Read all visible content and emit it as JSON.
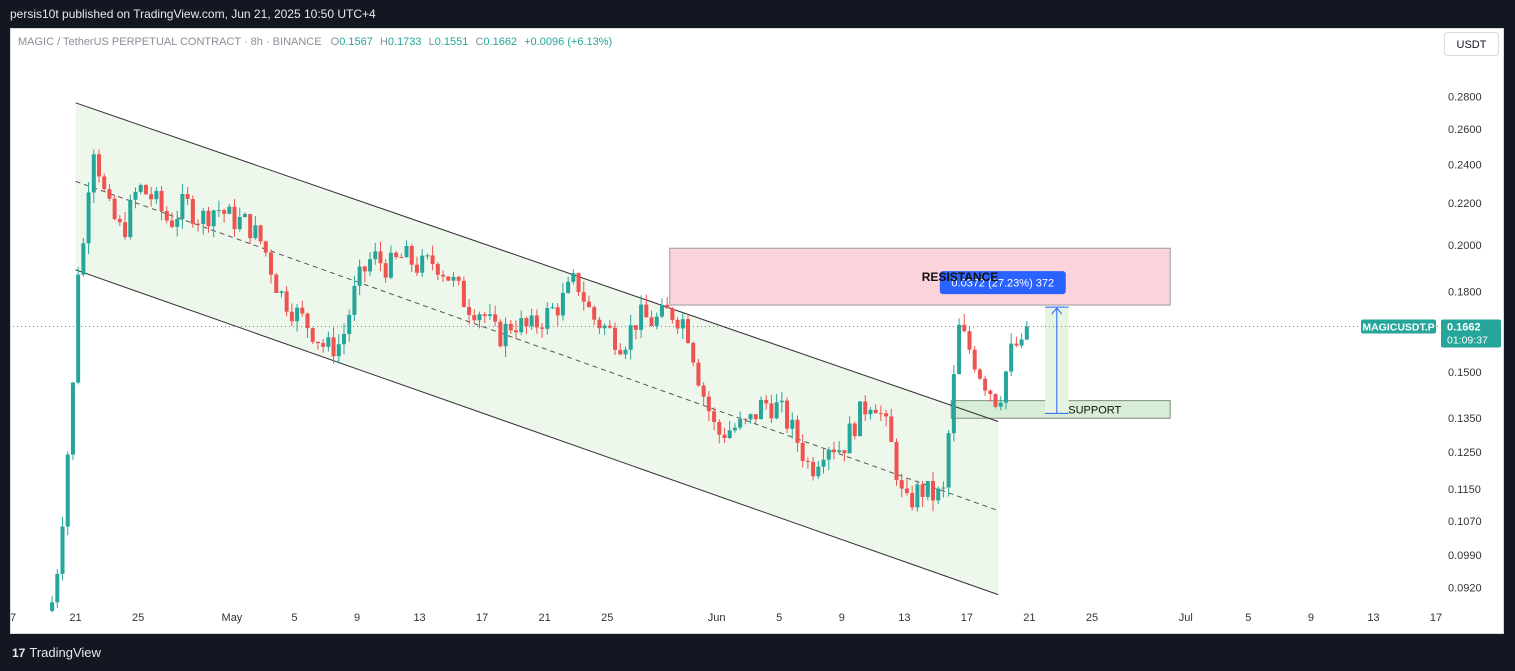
{
  "header": {
    "published": "persis10t published on TradingView.com, Jun 21, 2025 10:50 UTC+4"
  },
  "symbol_line": {
    "title": "MAGIC / TetherUS PERPETUAL CONTRACT · 8h · BINANCE",
    "open_label": "O",
    "open": "0.1567",
    "high_label": "H",
    "high": "0.1733",
    "low_label": "L",
    "low": "0.1551",
    "close_label": "C",
    "close": "0.1662",
    "change": "+0.0096 (+6.13%)"
  },
  "currency_button": "USDT",
  "footer": {
    "logo": "17",
    "brand": "TradingView"
  },
  "colors": {
    "up": "#26a69a",
    "down": "#ef5350",
    "channel_fill": "#eef7ec",
    "resistance_fill": "#fad4da",
    "support_fill": "#d8edd6",
    "measure": "#2962ff"
  },
  "chart_data": {
    "type": "candlestick",
    "symbol": "MAGICUSDT.P",
    "interval": "8h",
    "ylim": [
      0.088,
      0.298
    ],
    "y_scale": "log",
    "y_ticks": [
      "0.2800",
      "0.2600",
      "0.2400",
      "0.2200",
      "0.2000",
      "0.1800",
      "0.1500",
      "0.1350",
      "0.1250",
      "0.1150",
      "0.1070",
      "0.0990",
      "0.0920"
    ],
    "y_tick_values": [
      0.28,
      0.26,
      0.24,
      0.22,
      0.2,
      0.18,
      0.15,
      0.135,
      0.125,
      0.115,
      0.107,
      0.099,
      0.092
    ],
    "x_range": [
      "2025-04-17",
      "2025-07-17"
    ],
    "x_ticks": [
      {
        "label": "7",
        "date": "2025-04-17"
      },
      {
        "label": "21",
        "date": "2025-04-21"
      },
      {
        "label": "25",
        "date": "2025-04-25"
      },
      {
        "label": "May",
        "date": "2025-05-01"
      },
      {
        "label": "5",
        "date": "2025-05-05"
      },
      {
        "label": "9",
        "date": "2025-05-09"
      },
      {
        "label": "13",
        "date": "2025-05-13"
      },
      {
        "label": "17",
        "date": "2025-05-17"
      },
      {
        "label": "21",
        "date": "2025-05-21"
      },
      {
        "label": "25",
        "date": "2025-05-25"
      },
      {
        "label": "Jun",
        "date": "2025-06-01"
      },
      {
        "label": "5",
        "date": "2025-06-05"
      },
      {
        "label": "9",
        "date": "2025-06-09"
      },
      {
        "label": "13",
        "date": "2025-06-13"
      },
      {
        "label": "17",
        "date": "2025-06-17"
      },
      {
        "label": "21",
        "date": "2025-06-21"
      },
      {
        "label": "25",
        "date": "2025-06-25"
      },
      {
        "label": "Jul",
        "date": "2025-07-01"
      },
      {
        "label": "5",
        "date": "2025-07-05"
      },
      {
        "label": "9",
        "date": "2025-07-09"
      },
      {
        "label": "13",
        "date": "2025-07-13"
      },
      {
        "label": "17",
        "date": "2025-07-17"
      }
    ],
    "candle_path": [
      {
        "date": "2025-04-19T12:00",
        "price": 0.089
      },
      {
        "date": "2025-04-20T00:00",
        "price": 0.1
      },
      {
        "date": "2025-04-20T12:00",
        "price": 0.125
      },
      {
        "date": "2025-04-20T20:00",
        "price": 0.145
      },
      {
        "date": "2025-04-21T04:00",
        "price": 0.19
      },
      {
        "date": "2025-04-21T16:00",
        "price": 0.205
      },
      {
        "date": "2025-04-22T00:00",
        "price": 0.258
      },
      {
        "date": "2025-04-23T00:00",
        "price": 0.218
      },
      {
        "date": "2025-04-24T00:00",
        "price": 0.205
      },
      {
        "date": "2025-04-25T00:00",
        "price": 0.228
      },
      {
        "date": "2025-04-26T00:00",
        "price": 0.222
      },
      {
        "date": "2025-04-27T00:00",
        "price": 0.21
      },
      {
        "date": "2025-04-28T00:00",
        "price": 0.22
      },
      {
        "date": "2025-04-29T00:00",
        "price": 0.212
      },
      {
        "date": "2025-04-30T00:00",
        "price": 0.218
      },
      {
        "date": "2025-05-01T00:00",
        "price": 0.212
      },
      {
        "date": "2025-05-02T00:00",
        "price": 0.21
      },
      {
        "date": "2025-05-03T00:00",
        "price": 0.2
      },
      {
        "date": "2025-05-04T00:00",
        "price": 0.18
      },
      {
        "date": "2025-05-05T00:00",
        "price": 0.172
      },
      {
        "date": "2025-05-06T00:00",
        "price": 0.166
      },
      {
        "date": "2025-05-07T00:00",
        "price": 0.158
      },
      {
        "date": "2025-05-08T00:00",
        "price": 0.16
      },
      {
        "date": "2025-05-09T00:00",
        "price": 0.183
      },
      {
        "date": "2025-05-10T00:00",
        "price": 0.195
      },
      {
        "date": "2025-05-11T00:00",
        "price": 0.19
      },
      {
        "date": "2025-05-12T00:00",
        "price": 0.195
      },
      {
        "date": "2025-05-13T00:00",
        "price": 0.19
      },
      {
        "date": "2025-05-14T00:00",
        "price": 0.193
      },
      {
        "date": "2025-05-15T00:00",
        "price": 0.185
      },
      {
        "date": "2025-05-16T00:00",
        "price": 0.175
      },
      {
        "date": "2025-05-17T00:00",
        "price": 0.172
      },
      {
        "date": "2025-05-18T00:00",
        "price": 0.162
      },
      {
        "date": "2025-05-19T00:00",
        "price": 0.168
      },
      {
        "date": "2025-05-20T00:00",
        "price": 0.165
      },
      {
        "date": "2025-05-21T00:00",
        "price": 0.17
      },
      {
        "date": "2025-05-22T00:00",
        "price": 0.175
      },
      {
        "date": "2025-05-23T00:00",
        "price": 0.185
      },
      {
        "date": "2025-05-24T00:00",
        "price": 0.17
      },
      {
        "date": "2025-05-25T00:00",
        "price": 0.165
      },
      {
        "date": "2025-05-26T00:00",
        "price": 0.16
      },
      {
        "date": "2025-05-27T00:00",
        "price": 0.17
      },
      {
        "date": "2025-05-28T00:00",
        "price": 0.168
      },
      {
        "date": "2025-05-29T00:00",
        "price": 0.172
      },
      {
        "date": "2025-05-30T00:00",
        "price": 0.168
      },
      {
        "date": "2025-05-31T00:00",
        "price": 0.145
      },
      {
        "date": "2025-06-01T00:00",
        "price": 0.13
      },
      {
        "date": "2025-06-02T00:00",
        "price": 0.132
      },
      {
        "date": "2025-06-03T00:00",
        "price": 0.133
      },
      {
        "date": "2025-06-04T00:00",
        "price": 0.14
      },
      {
        "date": "2025-06-05T00:00",
        "price": 0.138
      },
      {
        "date": "2025-06-06T00:00",
        "price": 0.13
      },
      {
        "date": "2025-06-07T00:00",
        "price": 0.12
      },
      {
        "date": "2025-06-08T00:00",
        "price": 0.128
      },
      {
        "date": "2025-06-09T00:00",
        "price": 0.126
      },
      {
        "date": "2025-06-10T00:00",
        "price": 0.135
      },
      {
        "date": "2025-06-11T00:00",
        "price": 0.142
      },
      {
        "date": "2025-06-12T00:00",
        "price": 0.13
      },
      {
        "date": "2025-06-13T00:00",
        "price": 0.11
      },
      {
        "date": "2025-06-14T00:00",
        "price": 0.115
      },
      {
        "date": "2025-06-15T00:00",
        "price": 0.113
      },
      {
        "date": "2025-06-15T12:00",
        "price": 0.114
      },
      {
        "date": "2025-06-16T00:00",
        "price": 0.138
      },
      {
        "date": "2025-06-16T12:00",
        "price": 0.165
      },
      {
        "date": "2025-06-17T00:00",
        "price": 0.16
      },
      {
        "date": "2025-06-18T00:00",
        "price": 0.148
      },
      {
        "date": "2025-06-19T00:00",
        "price": 0.14
      },
      {
        "date": "2025-06-20T00:00",
        "price": 0.16
      },
      {
        "date": "2025-06-20T16:00",
        "price": 0.1567
      },
      {
        "date": "2025-06-21T00:00",
        "price": 0.1662
      }
    ],
    "last_price": "0.1662",
    "countdown": "01:09:37",
    "channel": {
      "upper": [
        {
          "date": "2025-04-21T00:00",
          "price": 0.276
        },
        {
          "date": "2025-06-19T00:00",
          "price": 0.134
        }
      ],
      "mid": [
        {
          "date": "2025-04-21T00:00",
          "price": 0.231
        },
        {
          "date": "2025-06-19T00:00",
          "price": 0.1095
        }
      ],
      "lower": [
        {
          "date": "2025-04-21T00:00",
          "price": 0.189
        },
        {
          "date": "2025-06-19T00:00",
          "price": 0.0905
        }
      ],
      "fill_end": "2025-06-19T00:00"
    },
    "resistance": {
      "label": "RESISTANCE",
      "from": "2025-05-29T00:00",
      "to": "2025-06-30T00:00",
      "top": 0.1985,
      "bottom": 0.1745
    },
    "support": {
      "label": "SUPPORT",
      "from": "2025-06-16T00:00",
      "to": "2025-06-30T00:00",
      "top": 0.1405,
      "bottom": 0.135
    },
    "measure": {
      "label": "0.0372 (27.23%) 372",
      "from": "2025-06-22T00:00",
      "to": "2025-06-23T12:00",
      "low": 0.1365,
      "high": 0.1737
    }
  }
}
